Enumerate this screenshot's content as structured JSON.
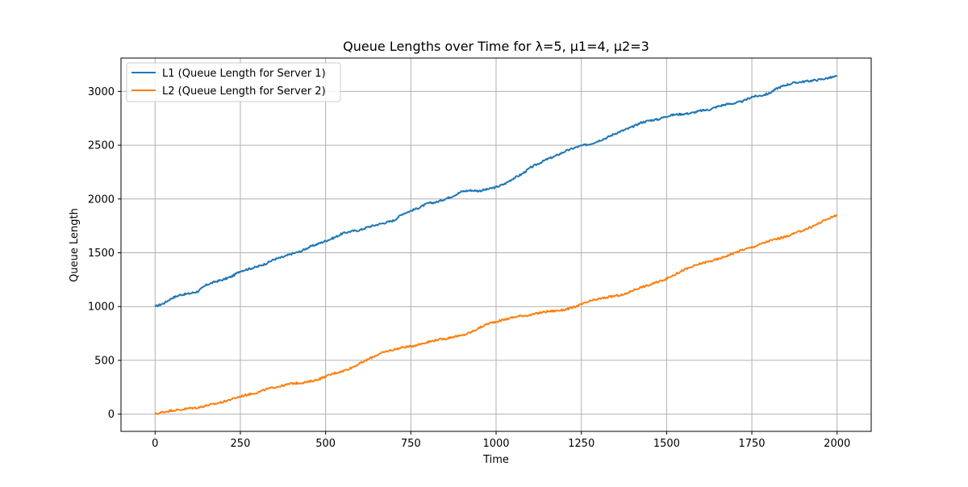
{
  "chart_data": {
    "type": "line",
    "title": "Queue Lengths over Time for λ=5, μ1=4, μ2=3",
    "xlabel": "Time",
    "ylabel": "Queue Length",
    "xlim": [
      -100,
      2100
    ],
    "ylim": [
      -160,
      3310
    ],
    "x_ticks": [
      0,
      250,
      500,
      750,
      1000,
      1250,
      1500,
      1750,
      2000
    ],
    "y_ticks": [
      0,
      500,
      1000,
      1500,
      2000,
      2500,
      3000
    ],
    "x_tick_labels": [
      "0",
      "250",
      "500",
      "750",
      "1000",
      "1250",
      "1500",
      "1750",
      "2000"
    ],
    "y_tick_labels": [
      "0",
      "500",
      "1000",
      "1500",
      "2000",
      "2500",
      "3000"
    ],
    "grid": true,
    "legend_position": "top-left",
    "series": [
      {
        "name": "L1 (Queue Length for Server 1)",
        "color": "#1f77b4",
        "x": [
          0,
          25,
          50,
          75,
          100,
          125,
          150,
          175,
          200,
          225,
          250,
          275,
          300,
          325,
          350,
          375,
          400,
          425,
          450,
          475,
          500,
          525,
          550,
          575,
          600,
          625,
          650,
          675,
          700,
          725,
          750,
          775,
          800,
          825,
          850,
          875,
          900,
          925,
          950,
          975,
          1000,
          1025,
          1050,
          1075,
          1100,
          1125,
          1150,
          1175,
          1200,
          1225,
          1250,
          1275,
          1300,
          1325,
          1350,
          1375,
          1400,
          1425,
          1450,
          1475,
          1500,
          1525,
          1550,
          1575,
          1600,
          1625,
          1650,
          1675,
          1700,
          1725,
          1750,
          1775,
          1800,
          1825,
          1850,
          1875,
          1900,
          1925,
          1950,
          1975,
          2000
        ],
        "y": [
          1000,
          1030,
          1080,
          1110,
          1120,
          1140,
          1200,
          1230,
          1250,
          1280,
          1330,
          1350,
          1370,
          1400,
          1440,
          1460,
          1490,
          1510,
          1550,
          1580,
          1610,
          1640,
          1680,
          1700,
          1710,
          1740,
          1760,
          1780,
          1800,
          1860,
          1890,
          1920,
          1960,
          1970,
          2000,
          2030,
          2070,
          2080,
          2075,
          2090,
          2110,
          2140,
          2190,
          2230,
          2290,
          2330,
          2370,
          2400,
          2440,
          2470,
          2495,
          2510,
          2540,
          2570,
          2610,
          2640,
          2670,
          2710,
          2730,
          2740,
          2770,
          2785,
          2790,
          2800,
          2820,
          2830,
          2860,
          2880,
          2890,
          2910,
          2950,
          2960,
          2980,
          3030,
          3060,
          3080,
          3090,
          3100,
          3110,
          3125,
          3140
        ]
      },
      {
        "name": "L2 (Queue Length for Server 2)",
        "color": "#ff7f0e",
        "x": [
          0,
          25,
          50,
          75,
          100,
          125,
          150,
          175,
          200,
          225,
          250,
          275,
          300,
          325,
          350,
          375,
          400,
          425,
          450,
          475,
          500,
          525,
          550,
          575,
          600,
          625,
          650,
          675,
          700,
          725,
          750,
          775,
          800,
          825,
          850,
          875,
          900,
          925,
          950,
          975,
          1000,
          1025,
          1050,
          1075,
          1100,
          1125,
          1150,
          1175,
          1200,
          1225,
          1250,
          1275,
          1300,
          1325,
          1350,
          1375,
          1400,
          1425,
          1450,
          1475,
          1500,
          1525,
          1550,
          1575,
          1600,
          1625,
          1650,
          1675,
          1700,
          1725,
          1750,
          1775,
          1800,
          1825,
          1850,
          1875,
          1900,
          1925,
          1950,
          1975,
          2000
        ],
        "y": [
          0,
          20,
          35,
          40,
          55,
          60,
          80,
          95,
          115,
          140,
          165,
          185,
          200,
          230,
          250,
          265,
          285,
          290,
          300,
          320,
          350,
          380,
          400,
          430,
          470,
          510,
          550,
          580,
          600,
          620,
          630,
          650,
          670,
          690,
          700,
          720,
          730,
          760,
          800,
          840,
          860,
          880,
          900,
          915,
          920,
          940,
          955,
          960,
          970,
          990,
          1020,
          1050,
          1070,
          1085,
          1100,
          1110,
          1150,
          1180,
          1200,
          1230,
          1260,
          1300,
          1340,
          1370,
          1400,
          1420,
          1440,
          1470,
          1500,
          1530,
          1550,
          1580,
          1610,
          1630,
          1650,
          1680,
          1710,
          1740,
          1780,
          1820,
          1850
        ]
      }
    ]
  }
}
